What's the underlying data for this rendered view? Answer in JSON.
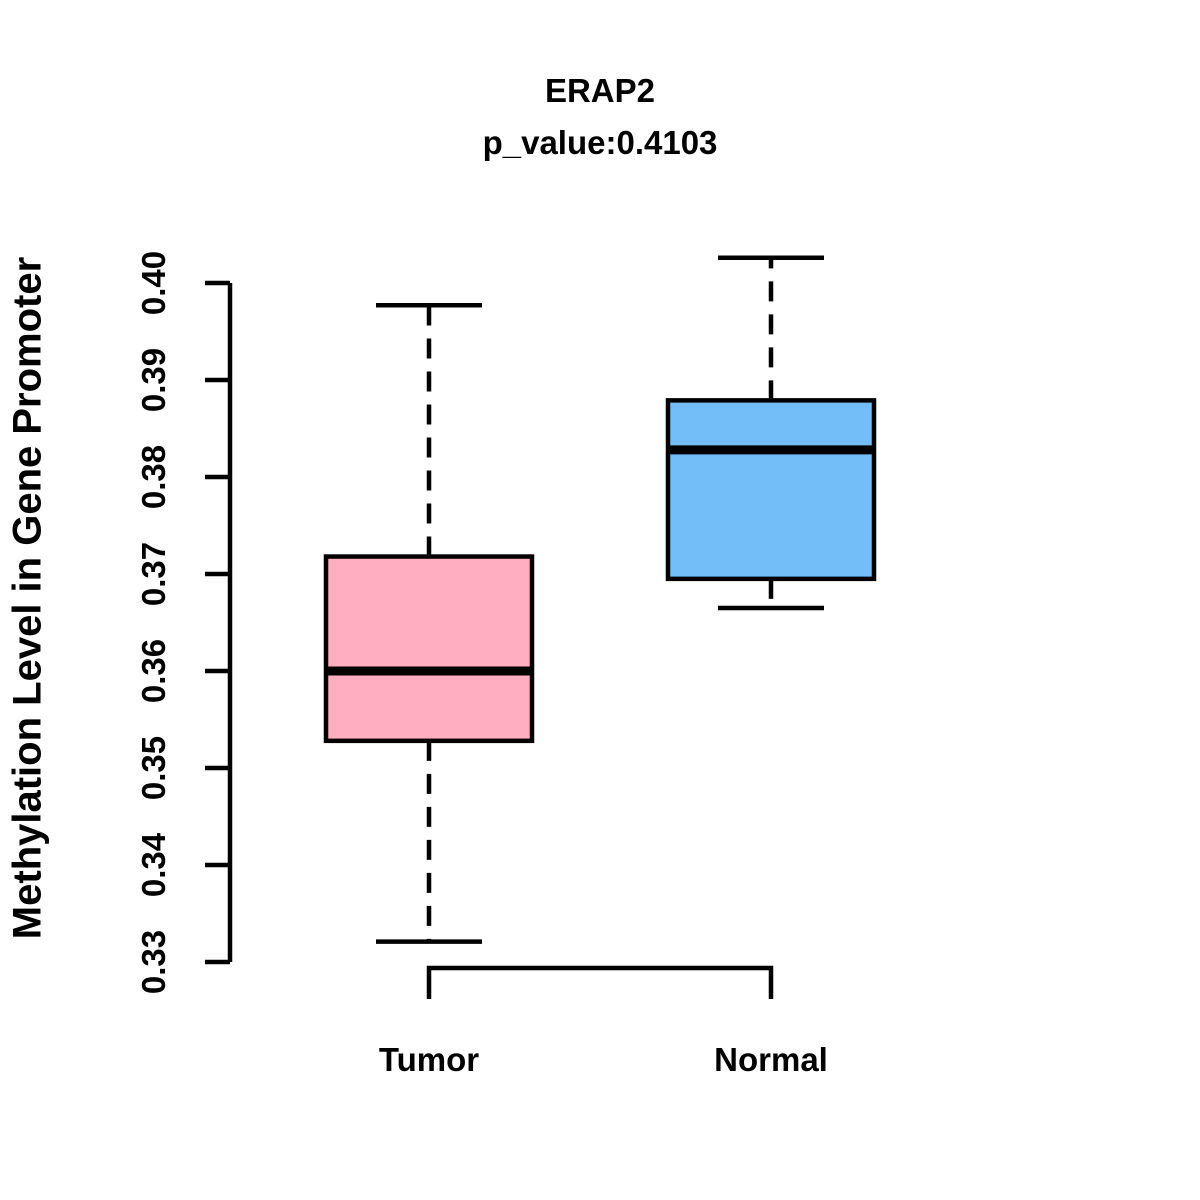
{
  "chart_data": {
    "type": "boxplot",
    "title": "ERAP2",
    "subtitle": "p_value:0.4103",
    "ylabel": "Methylation Level in Gene Promoter",
    "xlabel": "",
    "categories": [
      "Tumor",
      "Normal"
    ],
    "yticks": [
      0.33,
      0.34,
      0.35,
      0.36,
      0.37,
      0.38,
      0.39,
      0.4
    ],
    "ylim": [
      0.33,
      0.4
    ],
    "grid": false,
    "legend": "none",
    "series": [
      {
        "name": "Tumor",
        "color": "#FFAEC1",
        "lower_whisker": 0.3321,
        "q1": 0.3528,
        "median": 0.36,
        "q3": 0.3718,
        "upper_whisker": 0.3977
      },
      {
        "name": "Normal",
        "color": "#73BDF8",
        "lower_whisker": 0.3665,
        "q1": 0.3695,
        "median": 0.3828,
        "q3": 0.3879,
        "upper_whisker": 0.4026
      }
    ],
    "colors": {
      "stroke": "#000000",
      "background": "#FFFFFF",
      "tumor_fill": "#FFAEC1",
      "normal_fill": "#73BDF8"
    }
  }
}
